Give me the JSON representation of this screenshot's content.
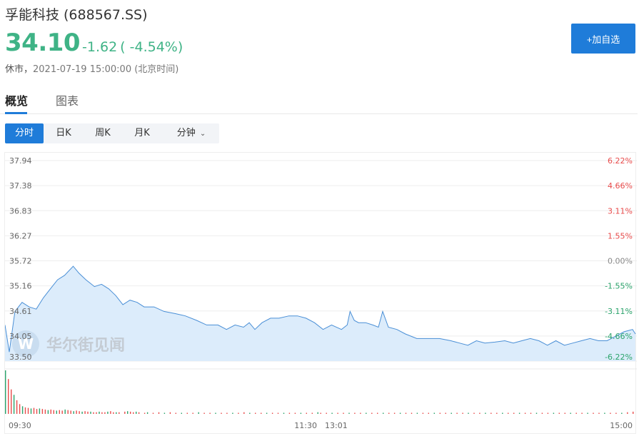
{
  "header": {
    "name": "孚能科技",
    "code": "(688567.SS)",
    "price": "34.10",
    "change": "-1.62",
    "change_pct": "( -4.54%)",
    "status": "休市，",
    "datetime": "2021-07-19 15:00:00 (北京时间)",
    "add_watchlist": "+加自选"
  },
  "tabs": [
    "概览",
    "图表"
  ],
  "periods": [
    "分时",
    "日K",
    "周K",
    "月K",
    "分钟"
  ],
  "watermark": "华尔街见闻",
  "colors": {
    "down": "#3fb386",
    "up": "#e94b4b",
    "accent": "#1f7cd9",
    "line": "#4a8fd6",
    "fill": "#dcecfb"
  },
  "chart_data": {
    "type": "area",
    "title": "",
    "ylim": [
      33.5,
      37.94
    ],
    "y_ticks_left": [
      "37.94",
      "37.38",
      "36.83",
      "36.27",
      "35.72",
      "35.16",
      "34.61",
      "34.05",
      "33.50"
    ],
    "y_ticks_right": [
      "6.22%",
      "4.66%",
      "3.11%",
      "1.55%",
      "0.00%",
      "-1.55%",
      "-3.11%",
      "-4.66%",
      "-6.22%"
    ],
    "x_ticks": [
      "09:30",
      "11:30",
      "13:01",
      "15:00"
    ],
    "prev_close": 35.72,
    "grid": true,
    "price_series": [
      [
        0,
        34.3
      ],
      [
        3,
        33.7
      ],
      [
        7,
        34.6
      ],
      [
        12,
        34.8
      ],
      [
        17,
        34.7
      ],
      [
        22,
        34.65
      ],
      [
        27,
        34.9
      ],
      [
        32,
        35.1
      ],
      [
        37,
        35.3
      ],
      [
        42,
        35.4
      ],
      [
        48,
        35.6
      ],
      [
        52,
        35.45
      ],
      [
        57,
        35.3
      ],
      [
        63,
        35.15
      ],
      [
        68,
        35.2
      ],
      [
        73,
        35.1
      ],
      [
        78,
        34.95
      ],
      [
        83,
        34.75
      ],
      [
        88,
        34.85
      ],
      [
        93,
        34.8
      ],
      [
        98,
        34.7
      ],
      [
        105,
        34.7
      ],
      [
        112,
        34.6
      ],
      [
        120,
        34.55
      ],
      [
        127,
        34.5
      ],
      [
        135,
        34.4
      ],
      [
        142,
        34.3
      ],
      [
        150,
        34.3
      ],
      [
        156,
        34.2
      ],
      [
        162,
        34.3
      ],
      [
        168,
        34.25
      ],
      [
        172,
        34.35
      ],
      [
        176,
        34.2
      ],
      [
        181,
        34.35
      ],
      [
        187,
        34.45
      ],
      [
        193,
        34.45
      ],
      [
        200,
        34.5
      ],
      [
        206,
        34.5
      ],
      [
        212,
        34.45
      ],
      [
        218,
        34.35
      ],
      [
        224,
        34.2
      ],
      [
        230,
        34.3
      ],
      [
        237,
        34.2
      ],
      [
        241,
        34.3
      ],
      [
        243,
        34.6
      ],
      [
        246,
        34.4
      ],
      [
        249,
        34.35
      ],
      [
        254,
        34.35
      ],
      [
        259,
        34.3
      ],
      [
        263,
        34.25
      ],
      [
        266,
        34.6
      ],
      [
        270,
        34.25
      ],
      [
        276,
        34.2
      ],
      [
        282,
        34.1
      ],
      [
        290,
        34.0
      ],
      [
        298,
        34.0
      ],
      [
        306,
        34.0
      ],
      [
        314,
        33.95
      ],
      [
        320,
        33.9
      ],
      [
        326,
        33.85
      ],
      [
        332,
        33.95
      ],
      [
        338,
        33.9
      ],
      [
        345,
        33.92
      ],
      [
        352,
        33.95
      ],
      [
        358,
        33.9
      ],
      [
        364,
        33.95
      ],
      [
        370,
        34.0
      ],
      [
        376,
        33.95
      ],
      [
        382,
        33.85
      ],
      [
        388,
        33.95
      ],
      [
        394,
        33.85
      ],
      [
        400,
        33.9
      ],
      [
        406,
        33.95
      ],
      [
        412,
        34.0
      ],
      [
        418,
        33.95
      ],
      [
        424,
        33.95
      ],
      [
        430,
        34.05
      ],
      [
        436,
        34.15
      ],
      [
        442,
        34.2
      ],
      [
        444,
        34.1
      ]
    ],
    "volume_series": [
      [
        0,
        80
      ],
      [
        2,
        64
      ],
      [
        4,
        45
      ],
      [
        6,
        35
      ],
      [
        8,
        25
      ],
      [
        10,
        18
      ],
      [
        12,
        14
      ],
      [
        14,
        12
      ],
      [
        16,
        11
      ],
      [
        18,
        10
      ],
      [
        20,
        11
      ],
      [
        22,
        9
      ],
      [
        24,
        10
      ],
      [
        26,
        9
      ],
      [
        28,
        8
      ],
      [
        30,
        7
      ],
      [
        32,
        8
      ],
      [
        34,
        7
      ],
      [
        36,
        6
      ],
      [
        38,
        7
      ],
      [
        40,
        6
      ],
      [
        42,
        8
      ],
      [
        44,
        7
      ],
      [
        46,
        6
      ],
      [
        48,
        5
      ],
      [
        50,
        6
      ],
      [
        52,
        5
      ],
      [
        54,
        4
      ],
      [
        56,
        5
      ],
      [
        58,
        4
      ],
      [
        60,
        4
      ],
      [
        62,
        3
      ],
      [
        64,
        3
      ],
      [
        66,
        4
      ],
      [
        68,
        3
      ],
      [
        70,
        3
      ],
      [
        72,
        4
      ],
      [
        74,
        5
      ],
      [
        76,
        3
      ],
      [
        78,
        3
      ],
      [
        80,
        3
      ],
      [
        84,
        4
      ],
      [
        86,
        5
      ],
      [
        88,
        4
      ],
      [
        90,
        3
      ],
      [
        92,
        4
      ],
      [
        94,
        3
      ],
      [
        98,
        2
      ],
      [
        100,
        3
      ],
      [
        104,
        2
      ],
      [
        108,
        3
      ],
      [
        112,
        2
      ],
      [
        116,
        3
      ],
      [
        120,
        2
      ],
      [
        124,
        2
      ],
      [
        128,
        2
      ],
      [
        132,
        2
      ],
      [
        136,
        3
      ],
      [
        140,
        2
      ],
      [
        144,
        2
      ],
      [
        148,
        2
      ],
      [
        152,
        2
      ],
      [
        156,
        2
      ],
      [
        160,
        2
      ],
      [
        164,
        2
      ],
      [
        168,
        3
      ],
      [
        172,
        2
      ],
      [
        176,
        2
      ],
      [
        180,
        2
      ],
      [
        184,
        2
      ],
      [
        188,
        2
      ],
      [
        192,
        2
      ],
      [
        196,
        2
      ],
      [
        200,
        2
      ],
      [
        204,
        2
      ],
      [
        208,
        2
      ],
      [
        212,
        2
      ],
      [
        216,
        2
      ],
      [
        220,
        3
      ],
      [
        222,
        2
      ],
      [
        226,
        2
      ],
      [
        230,
        2
      ],
      [
        234,
        2
      ],
      [
        238,
        2
      ],
      [
        242,
        2
      ],
      [
        246,
        2
      ],
      [
        250,
        2
      ],
      [
        254,
        2
      ],
      [
        258,
        2
      ],
      [
        262,
        2
      ],
      [
        266,
        2
      ],
      [
        270,
        2
      ],
      [
        274,
        2
      ],
      [
        278,
        2
      ],
      [
        282,
        2
      ],
      [
        286,
        2
      ],
      [
        290,
        2
      ],
      [
        294,
        2
      ],
      [
        298,
        2
      ],
      [
        302,
        2
      ],
      [
        306,
        2
      ],
      [
        310,
        2
      ],
      [
        314,
        2
      ],
      [
        318,
        2
      ],
      [
        322,
        2
      ],
      [
        326,
        2
      ],
      [
        330,
        2
      ],
      [
        334,
        2
      ],
      [
        338,
        2
      ],
      [
        342,
        2
      ],
      [
        346,
        2
      ],
      [
        350,
        2
      ],
      [
        354,
        2
      ],
      [
        358,
        2
      ],
      [
        362,
        2
      ],
      [
        366,
        2
      ],
      [
        370,
        2
      ],
      [
        374,
        2
      ],
      [
        378,
        2
      ],
      [
        382,
        2
      ],
      [
        386,
        2
      ],
      [
        390,
        2
      ],
      [
        394,
        2
      ],
      [
        398,
        2
      ],
      [
        402,
        2
      ],
      [
        406,
        2
      ],
      [
        410,
        2
      ],
      [
        414,
        2
      ],
      [
        418,
        2
      ],
      [
        422,
        2
      ],
      [
        426,
        2
      ],
      [
        430,
        2
      ],
      [
        434,
        2
      ],
      [
        438,
        3
      ],
      [
        442,
        4
      ]
    ]
  }
}
